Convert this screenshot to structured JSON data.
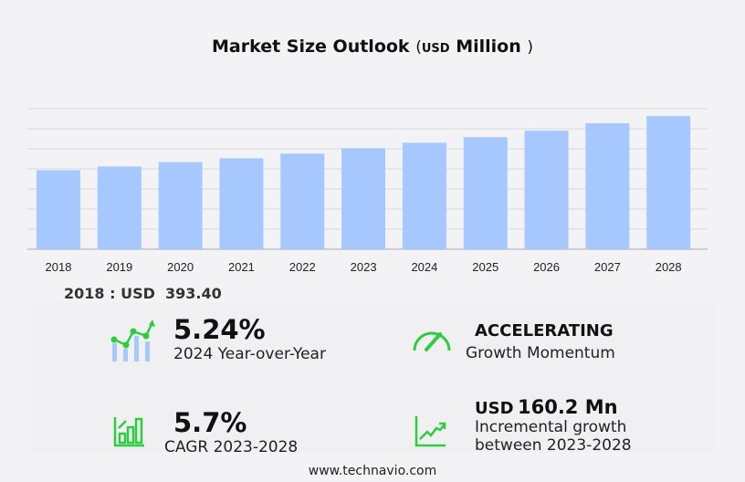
{
  "title": {
    "main": "Market Size Outlook",
    "open": "(",
    "unit": "USD",
    "unit_word": "Million",
    "close": ")"
  },
  "chart_data": {
    "type": "bar",
    "title": "Market Size Outlook (USD Million)",
    "categories": [
      "2018",
      "2019",
      "2020",
      "2021",
      "2022",
      "2023",
      "2024",
      "2025",
      "2026",
      "2027",
      "2028"
    ],
    "values": [
      393.4,
      412,
      434,
      453,
      476,
      503,
      530,
      558,
      590,
      627,
      663
    ],
    "ylim": [
      0,
      700
    ],
    "grid": true,
    "bar_color": "#a6c8ff"
  },
  "base_year": {
    "label": "2018 : USD",
    "value": "393.40"
  },
  "stats": {
    "yoy": {
      "value": "5.24%",
      "label": "2024 Year-over-Year"
    },
    "momentum": {
      "value": "ACCELERATING",
      "label": "Growth Momentum"
    },
    "cagr": {
      "value": "5.7%",
      "label": "CAGR 2023-2028"
    },
    "incremental": {
      "prefix": "USD",
      "value": "160.2 Mn",
      "label1": "Incremental growth",
      "label2": "between 2023-2028"
    }
  },
  "colors": {
    "accent": "#2ecc40",
    "bar": "#a6c8ff",
    "background": "#f3f3f5"
  },
  "footer": "www.technavio.com"
}
